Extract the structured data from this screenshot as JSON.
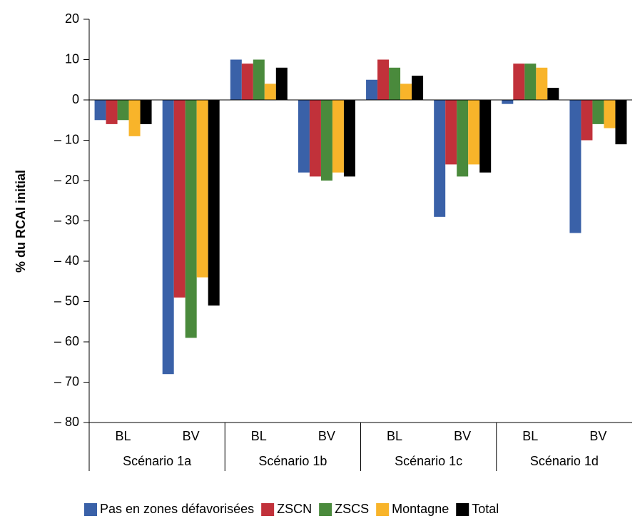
{
  "chart_data": {
    "type": "bar",
    "y_label": "% du RCAI initial",
    "categories": [
      "BL",
      "BV",
      "BL",
      "BV",
      "BL",
      "BV",
      "BL",
      "BV"
    ],
    "groups": [
      "Scénario 1a",
      "Scénario 1b",
      "Scénario 1c",
      "Scénario 1d"
    ],
    "series": [
      {
        "name": "Pas en zones défavorisées",
        "color": "#3a61a8",
        "values": [
          -5,
          -68,
          10,
          -18,
          5,
          -29,
          -1,
          -33
        ]
      },
      {
        "name": "ZSCN",
        "color": "#c1313a",
        "values": [
          -6,
          -49,
          9,
          -19,
          10,
          -16,
          9,
          -10
        ]
      },
      {
        "name": "ZSCS",
        "color": "#4a8a3c",
        "values": [
          -5,
          -59,
          10,
          -20,
          8,
          -19,
          9,
          -6
        ]
      },
      {
        "name": "Montagne",
        "color": "#f8b42a",
        "values": [
          -9,
          -44,
          4,
          -18,
          4,
          -16,
          8,
          -7
        ]
      },
      {
        "name": "Total",
        "color": "#000000",
        "values": [
          -6,
          -51,
          8,
          -19,
          6,
          -18,
          3,
          -11
        ]
      }
    ],
    "ylim": [
      -80,
      20
    ],
    "yticks": [
      {
        "value": -80,
        "label": "– 80"
      },
      {
        "value": -70,
        "label": "– 70"
      },
      {
        "value": -60,
        "label": "– 60"
      },
      {
        "value": -50,
        "label": "– 50"
      },
      {
        "value": -40,
        "label": "– 40"
      },
      {
        "value": -30,
        "label": "– 30"
      },
      {
        "value": -20,
        "label": "– 20"
      },
      {
        "value": -10,
        "label": "– 10"
      },
      0,
      10,
      20
    ],
    "legend_position": "bottom"
  }
}
